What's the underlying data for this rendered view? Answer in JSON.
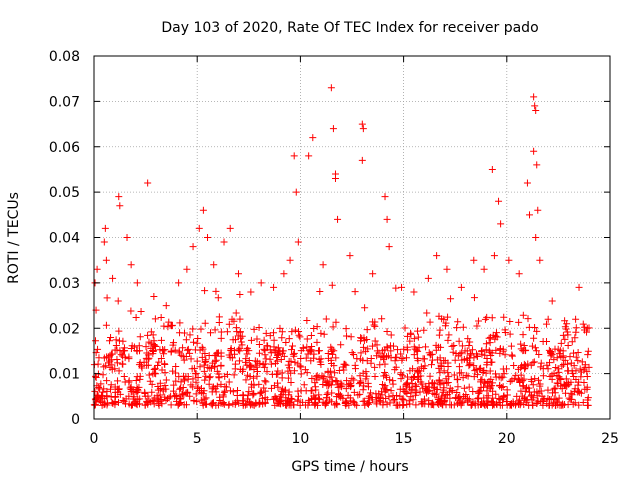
{
  "chart_data": {
    "type": "scatter",
    "title": "Day 103 of 2020, Rate Of TEC Index for receiver pado",
    "xlabel": "GPS time / hours",
    "ylabel": "ROTI / TECUs",
    "xlim": [
      0,
      24
    ],
    "ylim": [
      0,
      0.08
    ],
    "x_ticks": [
      0,
      5,
      10,
      15,
      20,
      25
    ],
    "x_tick_labels": [
      "0",
      "5",
      "10",
      "15",
      "20",
      "25"
    ],
    "y_ticks": [
      0,
      0.01,
      0.02,
      0.03,
      0.04,
      0.05,
      0.06,
      0.07,
      0.08
    ],
    "y_tick_labels": [
      "0",
      "0.01",
      "0.02",
      "0.03",
      "0.04",
      "0.05",
      "0.06",
      "0.07",
      "0.08"
    ],
    "grid": true,
    "marker": "+",
    "color": "#ff0000",
    "series": [
      {
        "name": "ROTI",
        "points": [
          [
            0.05,
            0.03
          ],
          [
            0.1,
            0.024
          ],
          [
            0.15,
            0.033
          ],
          [
            0.5,
            0.039
          ],
          [
            0.55,
            0.042
          ],
          [
            0.6,
            0.035
          ],
          [
            0.9,
            0.031
          ],
          [
            1.2,
            0.049
          ],
          [
            1.25,
            0.047
          ],
          [
            1.6,
            0.04
          ],
          [
            1.8,
            0.034
          ],
          [
            2.1,
            0.03
          ],
          [
            2.6,
            0.052
          ],
          [
            2.9,
            0.027
          ],
          [
            3.5,
            0.025
          ],
          [
            4.1,
            0.03
          ],
          [
            4.5,
            0.033
          ],
          [
            4.8,
            0.038
          ],
          [
            5.1,
            0.042
          ],
          [
            5.3,
            0.046
          ],
          [
            5.5,
            0.04
          ],
          [
            5.8,
            0.034
          ],
          [
            6.3,
            0.039
          ],
          [
            6.6,
            0.042
          ],
          [
            7.0,
            0.032
          ],
          [
            7.6,
            0.028
          ],
          [
            8.1,
            0.03
          ],
          [
            8.7,
            0.029
          ],
          [
            9.2,
            0.032
          ],
          [
            9.5,
            0.035
          ],
          [
            9.7,
            0.058
          ],
          [
            9.8,
            0.05
          ],
          [
            9.9,
            0.039
          ],
          [
            10.4,
            0.058
          ],
          [
            10.6,
            0.062
          ],
          [
            11.1,
            0.034
          ],
          [
            11.5,
            0.073
          ],
          [
            11.6,
            0.064
          ],
          [
            11.7,
            0.053
          ],
          [
            11.7,
            0.054
          ],
          [
            11.8,
            0.044
          ],
          [
            12.4,
            0.036
          ],
          [
            13.0,
            0.065
          ],
          [
            13.05,
            0.064
          ],
          [
            13.0,
            0.057
          ],
          [
            13.5,
            0.032
          ],
          [
            14.1,
            0.049
          ],
          [
            14.2,
            0.044
          ],
          [
            14.3,
            0.038
          ],
          [
            14.9,
            0.029
          ],
          [
            15.5,
            0.028
          ],
          [
            16.2,
            0.031
          ],
          [
            16.6,
            0.036
          ],
          [
            17.1,
            0.033
          ],
          [
            17.8,
            0.029
          ],
          [
            18.4,
            0.035
          ],
          [
            18.9,
            0.033
          ],
          [
            19.3,
            0.055
          ],
          [
            19.4,
            0.036
          ],
          [
            19.6,
            0.048
          ],
          [
            19.7,
            0.043
          ],
          [
            20.1,
            0.035
          ],
          [
            20.6,
            0.032
          ],
          [
            21.0,
            0.052
          ],
          [
            21.1,
            0.045
          ],
          [
            21.3,
            0.071
          ],
          [
            21.35,
            0.069
          ],
          [
            21.4,
            0.068
          ],
          [
            21.3,
            0.059
          ],
          [
            21.45,
            0.056
          ],
          [
            21.5,
            0.046
          ],
          [
            21.4,
            0.04
          ],
          [
            21.6,
            0.035
          ],
          [
            22.2,
            0.026
          ],
          [
            22.9,
            0.021
          ],
          [
            23.5,
            0.029
          ],
          [
            23.9,
            0.02
          ]
        ],
        "dense_band": {
          "x_range": [
            0,
            24
          ],
          "typical_range": [
            0.003,
            0.015
          ],
          "min": 0.001,
          "burst_max": 0.03
        }
      }
    ]
  }
}
